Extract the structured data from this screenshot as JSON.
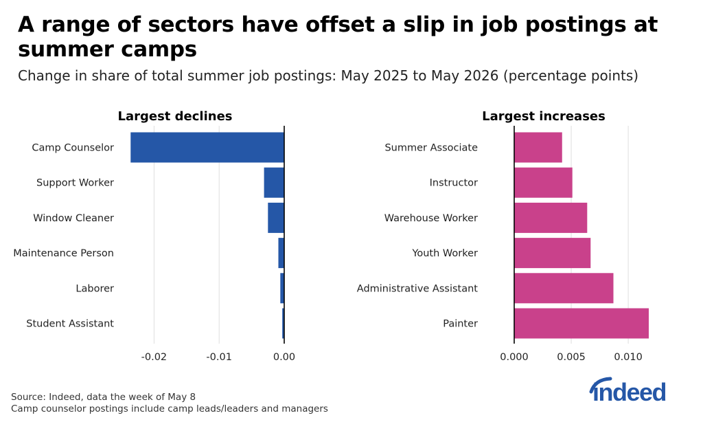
{
  "title": "A range of sectors have offset a slip in job postings at summer camps",
  "subtitle": "Change in share of total summer job postings: May 2025 to May 2026 (percentage points)",
  "chart_data": [
    {
      "type": "bar",
      "orientation": "horizontal",
      "panel_title": "Largest declines",
      "categories": [
        "Camp Counselor",
        "Support Worker",
        "Window Cleaner",
        "Maintenance Person",
        "Laborer",
        "Student Assistant"
      ],
      "values": [
        -0.0236,
        -0.0031,
        -0.0025,
        -0.0009,
        -0.0006,
        -0.0003
      ],
      "xlim": [
        -0.025,
        0.0
      ],
      "xticks": [
        -0.02,
        -0.01,
        0.0
      ],
      "xtick_labels": [
        "-0.02",
        "-0.01",
        "0.00"
      ],
      "color": "#2557a7",
      "grid": "vertical"
    },
    {
      "type": "bar",
      "orientation": "horizontal",
      "panel_title": "Largest increases",
      "categories": [
        "Summer Associate",
        "Instructor",
        "Warehouse Worker",
        "Youth Worker",
        "Administrative Assistant",
        "Painter"
      ],
      "values": [
        0.0042,
        0.0051,
        0.0064,
        0.0067,
        0.0087,
        0.0118
      ],
      "xlim": [
        0.0,
        0.0118
      ],
      "xticks": [
        0.0,
        0.005,
        0.01
      ],
      "xtick_labels": [
        "0.000",
        "0.005",
        "0.010"
      ],
      "color": "#c9418b",
      "grid": "vertical"
    }
  ],
  "footer": {
    "source": "Source: Indeed, data the week of May 8",
    "note": "Camp counselor postings include camp leads/leaders and managers"
  },
  "logo": {
    "text": "indeed",
    "color": "#2557a7",
    "icon": "indeed-logo"
  }
}
